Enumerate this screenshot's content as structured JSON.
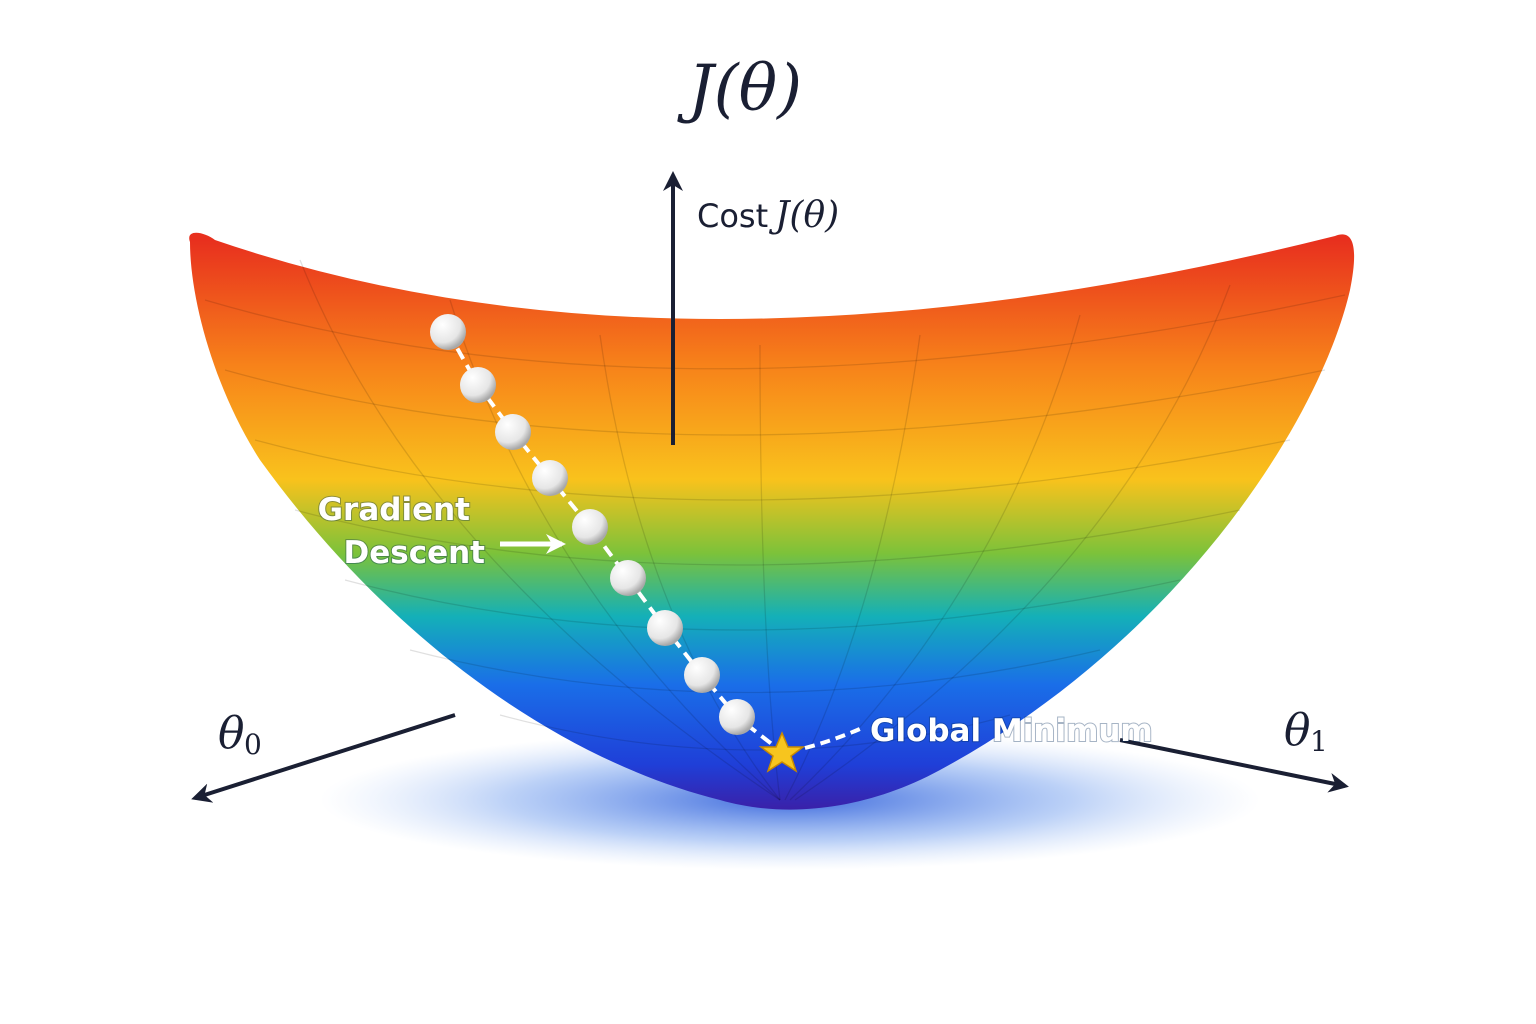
{
  "title": "J(θ)",
  "cost_axis": {
    "word": "Cost",
    "symbol": "J(θ)"
  },
  "path_label": {
    "line1": "Gradient",
    "line2": "Descent"
  },
  "minimum_label": "Global Minimum",
  "theta0_axis": {
    "symbol": "θ",
    "subscript": "0"
  },
  "theta1_axis": {
    "symbol": "θ",
    "subscript": "1"
  }
}
